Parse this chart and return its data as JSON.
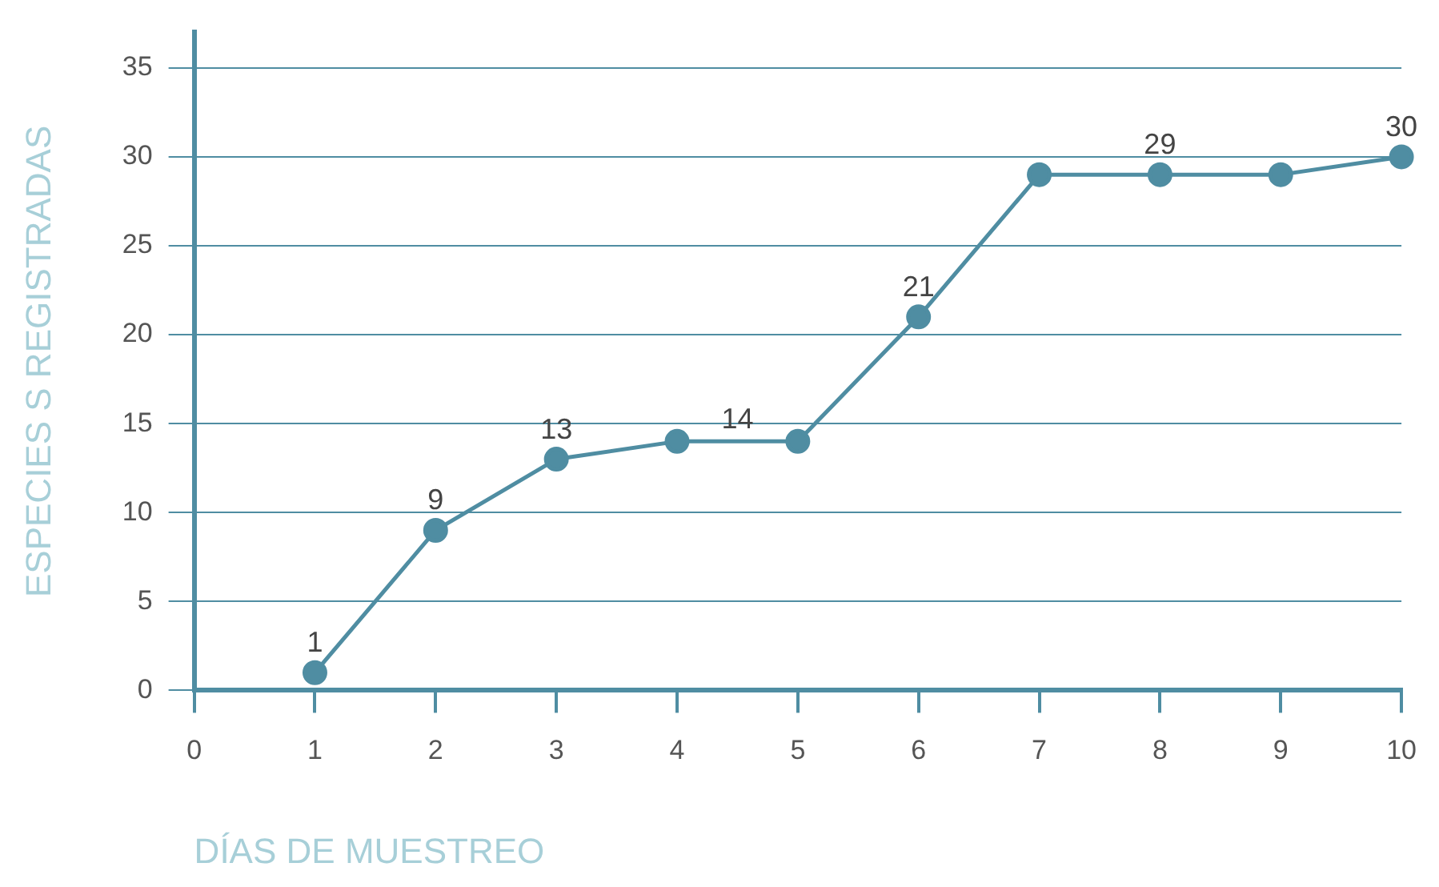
{
  "chart_data": {
    "type": "line",
    "xlabel": "DÍAS DE MUESTREO",
    "ylabel": "ESPECIES S REGISTRADAS",
    "x": [
      1,
      2,
      3,
      4,
      5,
      6,
      7,
      8,
      9,
      10
    ],
    "series": [
      {
        "color": "#4f8da2",
        "values": [
          1,
          9,
          13,
          14,
          14,
          21,
          29,
          29,
          29,
          30
        ],
        "value_labels": [
          "1",
          "9",
          "13",
          null,
          null,
          "21",
          null,
          "29",
          null,
          "30"
        ]
      }
    ],
    "annotations": [
      {
        "text": "14",
        "x": 4.5,
        "y": 14
      }
    ],
    "xlim": [
      0,
      10
    ],
    "xticks": [
      0,
      1,
      2,
      3,
      4,
      5,
      6,
      7,
      8,
      9,
      10
    ],
    "ylim": [
      0,
      37
    ],
    "yticks": [
      0,
      5,
      10,
      15,
      20,
      25,
      30,
      35
    ],
    "grid": "y",
    "legend": false,
    "marker": "circle",
    "line_style": "solid"
  }
}
